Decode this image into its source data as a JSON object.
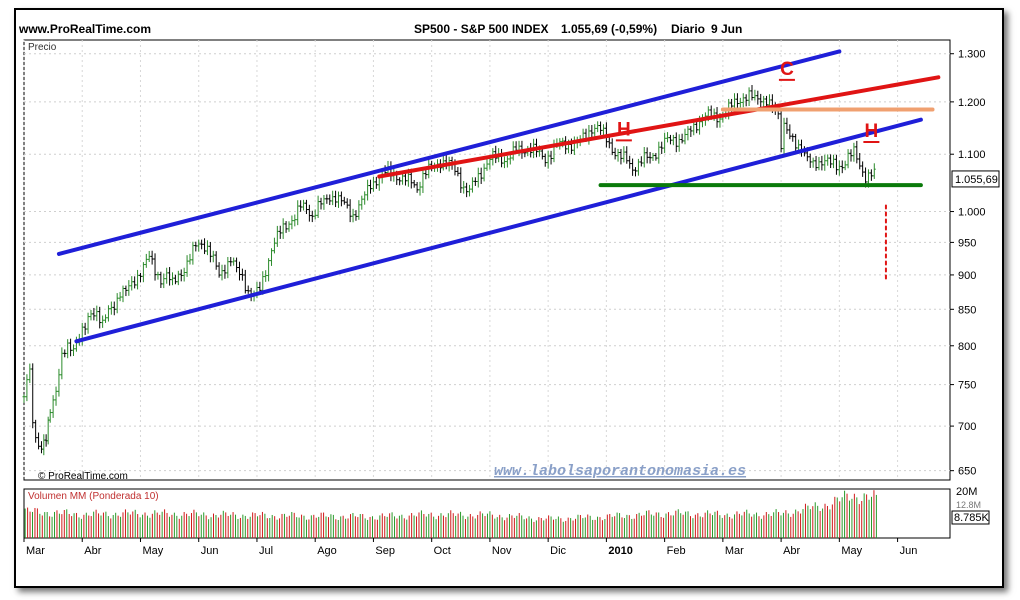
{
  "header": {
    "site": "www.ProRealTime.com",
    "instrument": "SP500 - S&P 500 INDEX",
    "quote": "1.055,69 (-0,59%)",
    "period": "Diario",
    "date": "9 Jun"
  },
  "watermark_site": "www.labolsaporantonomasia.es",
  "copyright": "© ProRealTime.com",
  "chart_data": [
    {
      "type": "candlestick",
      "panel": "price",
      "title": "Precio",
      "y_ticks": [
        650,
        700,
        750,
        800,
        850,
        900,
        950,
        1000,
        1100,
        1200,
        1300
      ],
      "y_tick_labels": [
        "650",
        "700",
        "750",
        "800",
        "850",
        "900",
        "950",
        "1.000",
        "1.100",
        "1.200",
        "1.300"
      ],
      "ylim": [
        640,
        1330
      ],
      "y_scale": "log",
      "x_labels": [
        "Mar",
        "Abr",
        "May",
        "Jun",
        "Jul",
        "Ago",
        "Sep",
        "Oct",
        "Nov",
        "Dic",
        "2010",
        "Feb",
        "Mar",
        "Abr",
        "May",
        "Jun"
      ],
      "x_label_months": [
        0,
        1,
        2,
        3,
        4,
        5,
        6,
        7,
        8,
        9,
        10,
        11,
        12,
        13,
        14,
        15
      ],
      "x_range_months": [
        0,
        15.9
      ],
      "last_value_label": "1.055,69",
      "last_value": 1055.69,
      "close_series": [
        [
          0.0,
          735
        ],
        [
          0.1,
          760
        ],
        [
          0.15,
          700
        ],
        [
          0.2,
          690
        ],
        [
          0.3,
          676
        ],
        [
          0.38,
          685
        ],
        [
          0.45,
          720
        ],
        [
          0.55,
          740
        ],
        [
          0.65,
          780
        ],
        [
          0.75,
          800
        ],
        [
          0.85,
          805
        ],
        [
          0.95,
          815
        ],
        [
          1.05,
          820
        ],
        [
          1.15,
          840
        ],
        [
          1.25,
          845
        ],
        [
          1.35,
          830
        ],
        [
          1.45,
          850
        ],
        [
          1.55,
          860
        ],
        [
          1.65,
          875
        ],
        [
          1.75,
          870
        ],
        [
          1.85,
          880
        ],
        [
          1.95,
          900
        ],
        [
          2.05,
          920
        ],
        [
          2.15,
          930
        ],
        [
          2.25,
          905
        ],
        [
          2.35,
          890
        ],
        [
          2.45,
          895
        ],
        [
          2.55,
          885
        ],
        [
          2.65,
          905
        ],
        [
          2.75,
          915
        ],
        [
          2.85,
          925
        ],
        [
          2.95,
          940
        ],
        [
          3.05,
          945
        ],
        [
          3.15,
          940
        ],
        [
          3.25,
          925
        ],
        [
          3.35,
          905
        ],
        [
          3.45,
          915
        ],
        [
          3.55,
          920
        ],
        [
          3.65,
          900
        ],
        [
          3.75,
          895
        ],
        [
          3.85,
          880
        ],
        [
          3.95,
          875
        ],
        [
          4.05,
          880
        ],
        [
          4.15,
          905
        ],
        [
          4.25,
          935
        ],
        [
          4.35,
          955
        ],
        [
          4.45,
          975
        ],
        [
          4.55,
          990
        ],
        [
          4.65,
          995
        ],
        [
          4.75,
          1005
        ],
        [
          4.85,
          1000
        ],
        [
          4.95,
          990
        ],
        [
          5.05,
          1010
        ],
        [
          5.15,
          1020
        ],
        [
          5.25,
          1030
        ],
        [
          5.35,
          1025
        ],
        [
          5.45,
          1010
        ],
        [
          5.55,
          1000
        ],
        [
          5.65,
          995
        ],
        [
          5.75,
          1015
        ],
        [
          5.85,
          1030
        ],
        [
          5.95,
          1045
        ],
        [
          6.05,
          1050
        ],
        [
          6.15,
          1060
        ],
        [
          6.25,
          1065
        ],
        [
          6.35,
          1070
        ],
        [
          6.45,
          1065
        ],
        [
          6.55,
          1055
        ],
        [
          6.65,
          1045
        ],
        [
          6.75,
          1035
        ],
        [
          6.85,
          1060
        ],
        [
          6.95,
          1075
        ],
        [
          7.05,
          1085
        ],
        [
          7.15,
          1090
        ],
        [
          7.25,
          1080
        ],
        [
          7.35,
          1070
        ],
        [
          7.45,
          1060
        ],
        [
          7.55,
          1045
        ],
        [
          7.65,
          1040
        ],
        [
          7.75,
          1055
        ],
        [
          7.85,
          1065
        ],
        [
          7.95,
          1080
        ],
        [
          8.05,
          1090
        ],
        [
          8.15,
          1095
        ],
        [
          8.25,
          1098
        ],
        [
          8.35,
          1102
        ],
        [
          8.45,
          1105
        ],
        [
          8.55,
          1100
        ],
        [
          8.65,
          1108
        ],
        [
          8.75,
          1110
        ],
        [
          8.85,
          1104
        ],
        [
          8.95,
          1098
        ],
        [
          9.05,
          1102
        ],
        [
          9.15,
          1110
        ],
        [
          9.25,
          1113
        ],
        [
          9.35,
          1118
        ],
        [
          9.45,
          1125
        ],
        [
          9.55,
          1130
        ],
        [
          9.65,
          1136
        ],
        [
          9.75,
          1145
        ],
        [
          9.85,
          1143
        ],
        [
          9.95,
          1135
        ],
        [
          10.05,
          1125
        ],
        [
          10.15,
          1110
        ],
        [
          10.25,
          1095
        ],
        [
          10.35,
          1085
        ],
        [
          10.45,
          1070
        ],
        [
          10.55,
          1080
        ],
        [
          10.65,
          1095
        ],
        [
          10.75,
          1100
        ],
        [
          10.85,
          1108
        ],
        [
          10.95,
          1112
        ],
        [
          11.05,
          1118
        ],
        [
          11.15,
          1125
        ],
        [
          11.25,
          1130
        ],
        [
          11.35,
          1138
        ],
        [
          11.45,
          1148
        ],
        [
          11.55,
          1155
        ],
        [
          11.65,
          1162
        ],
        [
          11.75,
          1168
        ],
        [
          11.85,
          1172
        ],
        [
          11.95,
          1178
        ],
        [
          12.05,
          1185
        ],
        [
          12.15,
          1190
        ],
        [
          12.25,
          1195
        ],
        [
          12.35,
          1205
        ],
        [
          12.45,
          1212
        ],
        [
          12.55,
          1210
        ],
        [
          12.65,
          1215
        ],
        [
          12.75,
          1205
        ],
        [
          12.85,
          1180
        ],
        [
          12.95,
          1165
        ],
        [
          13.0,
          1110
        ],
        [
          13.05,
          1160
        ],
        [
          13.15,
          1135
        ],
        [
          13.25,
          1120
        ],
        [
          13.35,
          1110
        ],
        [
          13.45,
          1085
        ],
        [
          13.55,
          1075
        ],
        [
          13.65,
          1090
        ],
        [
          13.75,
          1100
        ],
        [
          13.85,
          1085
        ],
        [
          13.95,
          1070
        ],
        [
          14.05,
          1075
        ],
        [
          14.15,
          1095
        ],
        [
          14.25,
          1105
        ],
        [
          14.35,
          1085
        ],
        [
          14.45,
          1065
        ],
        [
          14.55,
          1062
        ],
        [
          14.65,
          1055.69
        ]
      ],
      "trendlines": [
        {
          "name": "canal-superior",
          "color": "#1f1fd8",
          "points": [
            [
              0.6,
              932
            ],
            [
              14.0,
              1305
            ]
          ]
        },
        {
          "name": "canal-inferior",
          "color": "#1f1fd8",
          "points": [
            [
              0.9,
              806
            ],
            [
              15.4,
              1165
            ]
          ]
        },
        {
          "name": "resistencia-roja",
          "color": "#e01414",
          "points": [
            [
              6.1,
              1060
            ],
            [
              15.7,
              1250
            ]
          ]
        },
        {
          "name": "cuello-verde",
          "color": "#0a7a0a",
          "points": [
            [
              9.9,
              1045
            ],
            [
              15.4,
              1045
            ]
          ]
        },
        {
          "name": "nivel-naranja",
          "color": "#f0a070",
          "points": [
            [
              12.0,
              1185
            ],
            [
              15.6,
              1185
            ]
          ]
        },
        {
          "name": "objetivo-punteado",
          "color": "#e01414",
          "points": [
            [
              14.8,
              1010
            ],
            [
              14.8,
              890
            ]
          ],
          "dashed": true
        }
      ],
      "annotations": [
        {
          "text": "C",
          "x": 13.1,
          "y": 1255,
          "color": "#e01414"
        },
        {
          "text": "H",
          "x": 10.3,
          "y": 1135,
          "color": "#e01414"
        },
        {
          "text": "H",
          "x": 14.55,
          "y": 1132,
          "color": "#e01414"
        }
      ]
    },
    {
      "type": "bar",
      "panel": "volume",
      "title": "Volumen MM (Ponderada 10)",
      "y_tick_labels": [
        "20M",
        "12.8M"
      ],
      "last_value_label": "8.785K",
      "ylim": [
        0,
        21
      ],
      "volume_profile": [
        [
          0,
          12
        ],
        [
          1,
          10.5
        ],
        [
          2,
          11
        ],
        [
          3,
          10.5
        ],
        [
          4,
          10
        ],
        [
          5,
          9.8
        ],
        [
          6,
          9.5
        ],
        [
          7,
          10.5
        ],
        [
          8,
          10.2
        ],
        [
          9,
          8.5
        ],
        [
          10,
          9.5
        ],
        [
          11,
          11
        ],
        [
          12,
          10.5
        ],
        [
          13,
          10.8
        ],
        [
          13.8,
          15
        ],
        [
          14.2,
          19
        ],
        [
          14.6,
          18
        ],
        [
          14.9,
          10
        ]
      ]
    }
  ]
}
